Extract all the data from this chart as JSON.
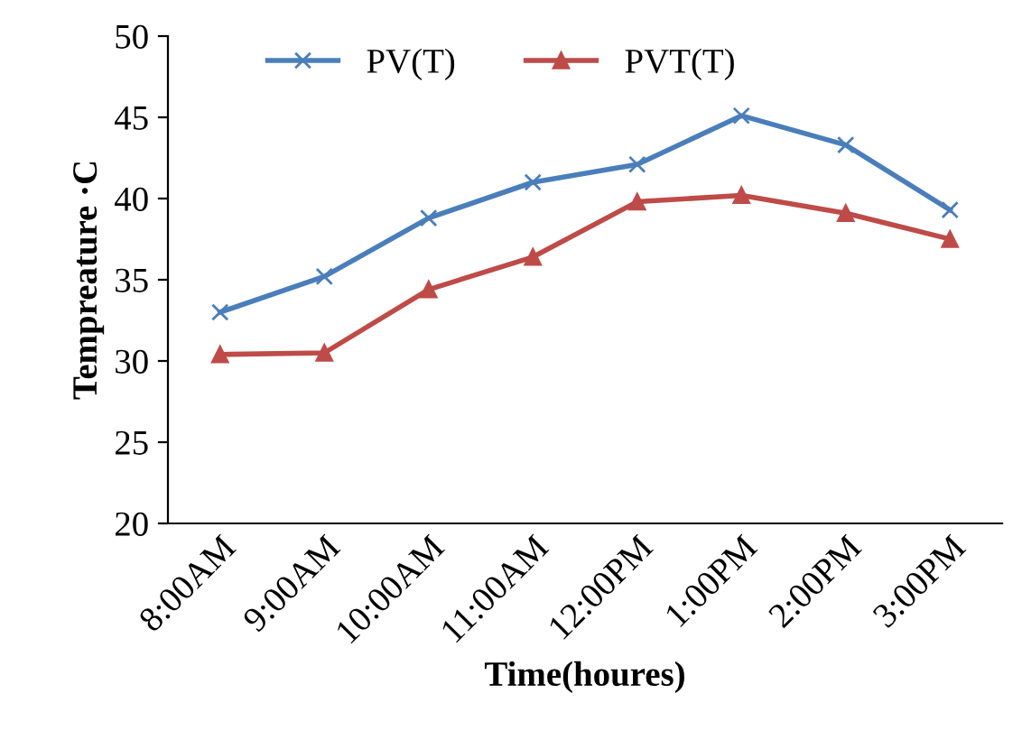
{
  "chart_data": {
    "type": "line",
    "xlabel": "Time(houres)",
    "ylabel": "Tempreature ·C",
    "categories": [
      "8:00AM",
      "9:00AM",
      "10:00AM",
      "11:00AM",
      "12:00PM",
      "1:00PM",
      "2:00PM",
      "3:00PM"
    ],
    "series": [
      {
        "name": "PV(T)",
        "color": "#4a7ebb",
        "marker": "cross",
        "values": [
          33.0,
          35.2,
          38.8,
          41.0,
          42.1,
          45.1,
          43.3,
          39.3
        ]
      },
      {
        "name": "PVT(T)",
        "color": "#be4b48",
        "marker": "triangle",
        "values": [
          30.4,
          30.5,
          34.4,
          36.4,
          39.8,
          40.2,
          39.1,
          37.5
        ]
      }
    ],
    "ylim": [
      20,
      50
    ],
    "yticks": [
      20,
      25,
      30,
      35,
      40,
      45,
      50
    ],
    "grid": false,
    "legend": "top",
    "line_style": "solid"
  }
}
